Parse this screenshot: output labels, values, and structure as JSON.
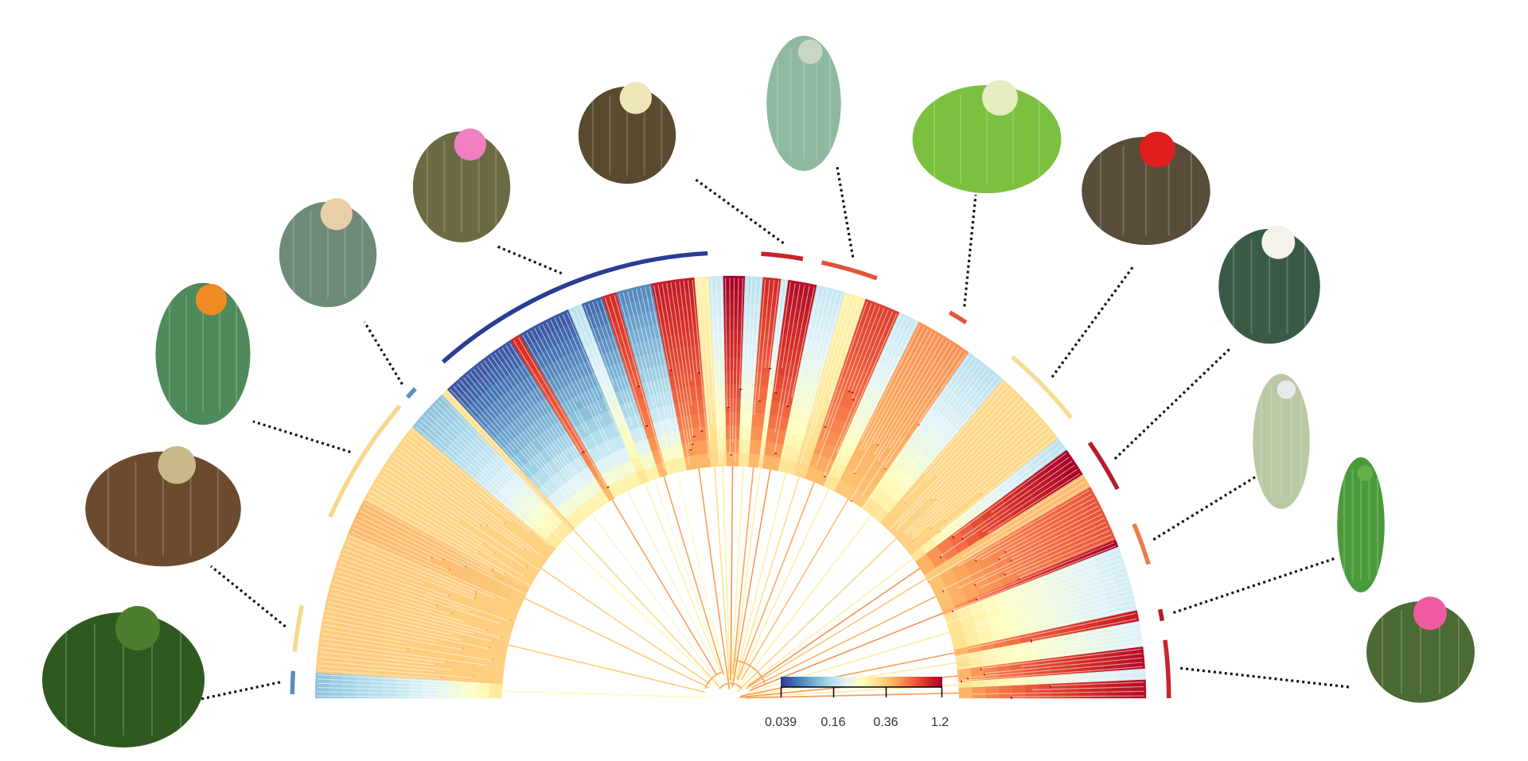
{
  "figure": {
    "type": "fan phylogeny with continuous trait color mapping",
    "color_scale": {
      "ticks": [
        "0.039",
        "0.16",
        "0.36",
        "1.2"
      ],
      "tick_values": [
        0.039,
        0.16,
        0.36,
        1.2
      ],
      "scale": "log",
      "palette": [
        "#313695",
        "#4575b4",
        "#74add1",
        "#abd9e9",
        "#e0f3f8",
        "#ffffbf",
        "#fee090",
        "#fdae61",
        "#f46d43",
        "#d73027",
        "#a50026"
      ]
    },
    "clades": [
      {
        "name": "clade-1-outgroup",
        "start_deg": 0.5,
        "end_deg": 3.5,
        "value": 0.09,
        "color": "#5a8cc1",
        "photo": "leafy-shrub-pereskia"
      },
      {
        "name": "clade-2",
        "start_deg": 6,
        "end_deg": 12,
        "value": 0.3,
        "color": "#f6d98c",
        "photo": "cholla-cylindropuntia"
      },
      {
        "name": "clade-3",
        "start_deg": 24,
        "end_deg": 41,
        "value": 0.3,
        "color": "#f6d98c",
        "photo": "prickly-pear-opuntia"
      },
      {
        "name": "clade-4",
        "start_deg": 42.5,
        "end_deg": 44,
        "value": 0.1,
        "color": "#5a8cc1",
        "photo": "star-cactus-astrophytum"
      },
      {
        "name": "clade-5",
        "start_deg": 49,
        "end_deg": 87,
        "value": 0.039,
        "color": "#283d93",
        "photo": "pink-flowered-mammillaria"
      },
      {
        "name": "clade-6",
        "start_deg": 94,
        "end_deg": 99.5,
        "value": 1.2,
        "color": "#c8242b",
        "photo": "tuberculate-ariocarpus"
      },
      {
        "name": "clade-7",
        "start_deg": 102,
        "end_deg": 109.5,
        "value": 0.8,
        "color": "#e0563a",
        "photo": "epiphyte-schlumbergera"
      },
      {
        "name": "clade-8",
        "start_deg": 120,
        "end_deg": 122.5,
        "value": 0.8,
        "color": "#e0563a",
        "photo": "night-bloom-selenicereus"
      },
      {
        "name": "clade-9",
        "start_deg": 130,
        "end_deg": 141,
        "value": 0.3,
        "color": "#f7dc95",
        "photo": "claret-cup-echinocereus"
      },
      {
        "name": "clade-10",
        "start_deg": 145,
        "end_deg": 152,
        "value": 1.2,
        "color": "#b51d2a",
        "photo": "white-flowered-gymnocalycium"
      },
      {
        "name": "clade-11",
        "start_deg": 157,
        "end_deg": 162.5,
        "value": 0.6,
        "color": "#ea7b4c",
        "photo": "woolly-columnar-cephalocereus"
      },
      {
        "name": "clade-12",
        "start_deg": 168.5,
        "end_deg": 170,
        "value": 1.2,
        "color": "#b51d2a",
        "photo": "slender-stems-harrisia"
      },
      {
        "name": "clade-13",
        "start_deg": 172.5,
        "end_deg": 180,
        "value": 1.2,
        "color": "#c8242b",
        "photo": "pink-flowered-echinopsis"
      }
    ],
    "wedges": [
      {
        "start_deg": 0,
        "end_deg": 3.5,
        "value": 0.09
      },
      {
        "start_deg": 3.5,
        "end_deg": 23,
        "value": 0.35
      },
      {
        "start_deg": 23,
        "end_deg": 28,
        "value": 0.4
      },
      {
        "start_deg": 28,
        "end_deg": 40,
        "value": 0.33
      },
      {
        "start_deg": 40,
        "end_deg": 46,
        "value": 0.09
      },
      {
        "start_deg": 46,
        "end_deg": 47,
        "value": 0.3
      },
      {
        "start_deg": 47,
        "end_deg": 58,
        "value": 0.045
      },
      {
        "start_deg": 58,
        "end_deg": 59.5,
        "value": 0.9
      },
      {
        "start_deg": 59.5,
        "end_deg": 67,
        "value": 0.045
      },
      {
        "start_deg": 67,
        "end_deg": 69,
        "value": 0.12
      },
      {
        "start_deg": 69,
        "end_deg": 72,
        "value": 0.05
      },
      {
        "start_deg": 72,
        "end_deg": 74,
        "value": 0.9
      },
      {
        "start_deg": 74,
        "end_deg": 79,
        "value": 0.06
      },
      {
        "start_deg": 79,
        "end_deg": 85,
        "value": 1.0
      },
      {
        "start_deg": 85,
        "end_deg": 87,
        "value": 0.25
      },
      {
        "start_deg": 87,
        "end_deg": 89,
        "value": 0.13
      },
      {
        "start_deg": 89,
        "end_deg": 92,
        "value": 1.2
      },
      {
        "start_deg": 92,
        "end_deg": 94.5,
        "value": 0.12
      },
      {
        "start_deg": 94.5,
        "end_deg": 97,
        "value": 0.9
      },
      {
        "start_deg": 97,
        "end_deg": 98,
        "value": 0.13
      },
      {
        "start_deg": 98,
        "end_deg": 102,
        "value": 1.1
      },
      {
        "start_deg": 102,
        "end_deg": 106,
        "value": 0.13
      },
      {
        "start_deg": 106,
        "end_deg": 109,
        "value": 0.25
      },
      {
        "start_deg": 109,
        "end_deg": 114,
        "value": 0.8
      },
      {
        "start_deg": 114,
        "end_deg": 117,
        "value": 0.13
      },
      {
        "start_deg": 117,
        "end_deg": 125,
        "value": 0.5
      },
      {
        "start_deg": 125,
        "end_deg": 131,
        "value": 0.12
      },
      {
        "start_deg": 131,
        "end_deg": 142,
        "value": 0.32
      },
      {
        "start_deg": 142,
        "end_deg": 144,
        "value": 0.12
      },
      {
        "start_deg": 144,
        "end_deg": 148,
        "value": 1.2
      },
      {
        "start_deg": 148,
        "end_deg": 150,
        "value": 0.4
      },
      {
        "start_deg": 150,
        "end_deg": 158,
        "value": 0.7
      },
      {
        "start_deg": 158,
        "end_deg": 159,
        "value": 1.2
      },
      {
        "start_deg": 159,
        "end_deg": 168,
        "value": 0.14
      },
      {
        "start_deg": 168,
        "end_deg": 169.5,
        "value": 1.0
      },
      {
        "start_deg": 169.5,
        "end_deg": 173,
        "value": 0.15
      },
      {
        "start_deg": 173,
        "end_deg": 176,
        "value": 1.1
      },
      {
        "start_deg": 176,
        "end_deg": 177.5,
        "value": 0.14
      },
      {
        "start_deg": 177.5,
        "end_deg": 180,
        "value": 1.1
      }
    ],
    "photos": [
      {
        "name": "leafy-shrub-pereskia",
        "label": "leafy shrub",
        "colors": [
          "#2f5a1f",
          "#4d7d2e"
        ]
      },
      {
        "name": "cholla-cylindropuntia",
        "label": "cholla",
        "colors": [
          "#6b4a2e",
          "#c8b98a"
        ]
      },
      {
        "name": "prickly-pear-opuntia",
        "label": "prickly pear",
        "colors": [
          "#4f8a5a",
          "#f08a24"
        ]
      },
      {
        "name": "star-cactus-astrophytum",
        "label": "star cactus",
        "colors": [
          "#6e8a78",
          "#e8cfa8"
        ]
      },
      {
        "name": "pink-flowered-mammillaria",
        "label": "pink-flowered globular cactus",
        "colors": [
          "#6b6a42",
          "#ef7fc0"
        ]
      },
      {
        "name": "tuberculate-ariocarpus",
        "label": "tuberculate cactus",
        "colors": [
          "#5a4a30",
          "#efe6b8"
        ]
      },
      {
        "name": "epiphyte-schlumbergera",
        "label": "flat-stemmed epiphyte",
        "colors": [
          "#8fb8a0",
          "#c8d7c4"
        ]
      },
      {
        "name": "night-bloom-selenicereus",
        "label": "climbing cactus with pendant flowers",
        "colors": [
          "#7cc040",
          "#e6ecc0"
        ]
      },
      {
        "name": "claret-cup-echinocereus",
        "label": "claret cup cactus",
        "colors": [
          "#5a4c3a",
          "#e01e1e"
        ]
      },
      {
        "name": "white-flowered-gymnocalycium",
        "label": "white-flowered globular cactus",
        "colors": [
          "#3a5a48",
          "#f4f2ea"
        ]
      },
      {
        "name": "woolly-columnar-cephalocereus",
        "label": "woolly columnar cactus",
        "colors": [
          "#b8c9a4",
          "#e8eaea"
        ]
      },
      {
        "name": "slender-stems-harrisia",
        "label": "slender-stemmed cactus",
        "colors": [
          "#4a9a3c",
          "#66b04c"
        ]
      },
      {
        "name": "pink-flowered-echinopsis",
        "label": "pink-flowered columnar cactus",
        "colors": [
          "#4c6a34",
          "#f05aa0"
        ]
      }
    ]
  },
  "chart_data": {
    "type": "heatmap",
    "title": "",
    "colorbar_ticks": [
      "0.039",
      "0.16",
      "0.36",
      "1.2"
    ],
    "colorbar_range": [
      0.039,
      1.2
    ],
    "legend_position": "bottom-center",
    "layout": "semicircular fan phylogeny"
  }
}
